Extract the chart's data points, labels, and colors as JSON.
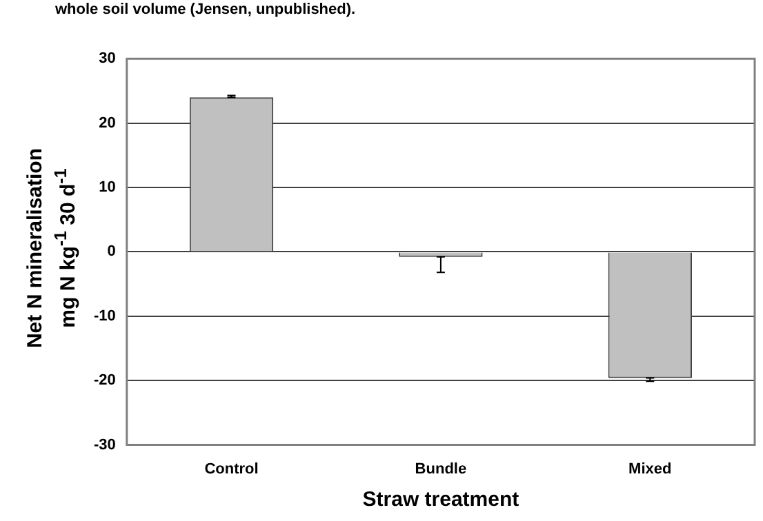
{
  "chart_data": {
    "type": "bar",
    "annotations": [
      "whole soil volume (Jensen, unpublished)."
    ],
    "xlabel": "Straw treatment",
    "ylabel": "Net N mineralisation\nmg N kg$^{-1}$ 30 d$^{-1}$",
    "categories": [
      "Control",
      "Bundle",
      "Mixed"
    ],
    "values": [
      24,
      -0.8,
      -19.6
    ],
    "errors": [
      [
        24,
        24.3
      ],
      [
        -3.2,
        -0.8
      ],
      [
        -20.1,
        -19.6
      ]
    ],
    "color": "#c0c0c0",
    "ylim": [
      -30,
      30
    ],
    "yticks": [
      -30,
      -20,
      -10,
      0,
      10,
      20,
      30
    ],
    "grid": "y",
    "legend": false
  }
}
